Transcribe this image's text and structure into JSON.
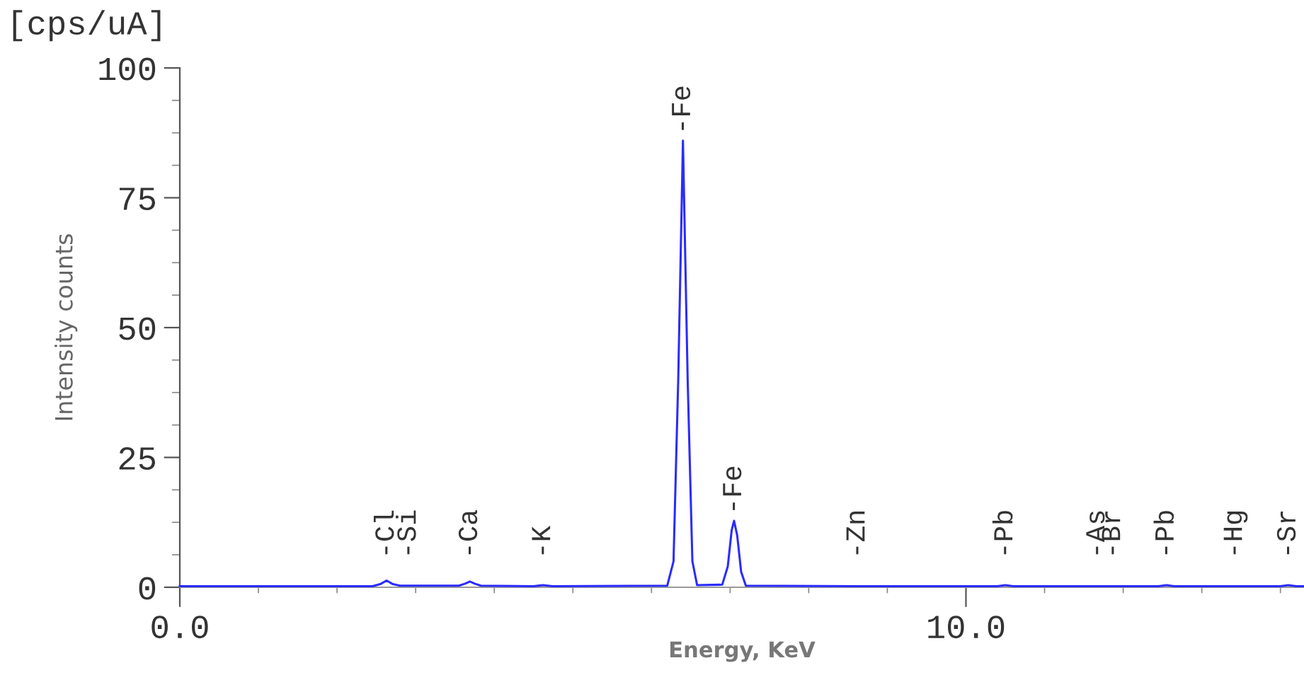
{
  "chart_data": {
    "type": "line",
    "xlabel": "Energy, KeV",
    "ylabel": "Intensity counts",
    "xlim": [
      0,
      14.3
    ],
    "ylim": [
      0,
      100
    ],
    "xticks": [
      {
        "value": 0,
        "label": "0.0"
      },
      {
        "value": 10,
        "label": "10.0"
      }
    ],
    "yticks": [
      0,
      25,
      50,
      75,
      100
    ],
    "grid": false,
    "legend": false,
    "marker": "none",
    "line_style": "solid",
    "series": [
      {
        "color": "#2b2bff",
        "x": [
          0,
          2.45,
          2.55,
          2.63,
          2.71,
          2.8,
          2.91,
          3.55,
          3.63,
          3.69,
          3.75,
          3.83,
          4.5,
          4.62,
          4.74,
          6.2,
          6.28,
          6.34,
          6.4,
          6.46,
          6.52,
          6.58,
          6.9,
          6.97,
          7.02,
          7.05,
          7.09,
          7.14,
          7.2,
          8.62,
          10.4,
          10.5,
          10.6,
          11.67,
          11.87,
          12.45,
          12.55,
          12.65,
          13.42,
          14.0,
          14.1,
          14.2,
          14.3
        ],
        "values": [
          0.2,
          0.2,
          0.6,
          1.3,
          0.6,
          0.3,
          0.3,
          0.3,
          0.7,
          1.1,
          0.7,
          0.3,
          0.2,
          0.4,
          0.2,
          0.3,
          5,
          40,
          86,
          40,
          5,
          0.4,
          0.5,
          4,
          11,
          12.8,
          10,
          3,
          0.3,
          0.2,
          0.2,
          0.4,
          0.2,
          0.2,
          0.2,
          0.2,
          0.4,
          0.2,
          0.2,
          0.2,
          0.4,
          0.2,
          0.2
        ]
      }
    ],
    "annotations": [
      "[cps/uA]",
      {
        "text": "-Cl",
        "x": 2.63,
        "y": 1.3
      },
      {
        "text": "-Si",
        "x": 2.91,
        "y": 0.3
      },
      {
        "text": "-Ca",
        "x": 3.69,
        "y": 1.1
      },
      {
        "text": "-K",
        "x": 4.62,
        "y": 0.4
      },
      {
        "text": "-Fe",
        "x": 6.4,
        "y": 86
      },
      {
        "text": "-Fe",
        "x": 7.05,
        "y": 12.8
      },
      {
        "text": "-Zn",
        "x": 8.62,
        "y": 0.2
      },
      {
        "text": "-Pb",
        "x": 10.5,
        "y": 0.4
      },
      {
        "text": "-As",
        "x": 11.67,
        "y": 0.2
      },
      {
        "text": "-Br",
        "x": 11.87,
        "y": 0.2
      },
      {
        "text": "-Pb",
        "x": 12.55,
        "y": 0.4
      },
      {
        "text": "-Hg",
        "x": 13.42,
        "y": 0.2
      },
      {
        "text": "-Sr",
        "x": 14.1,
        "y": 0.4
      }
    ]
  }
}
